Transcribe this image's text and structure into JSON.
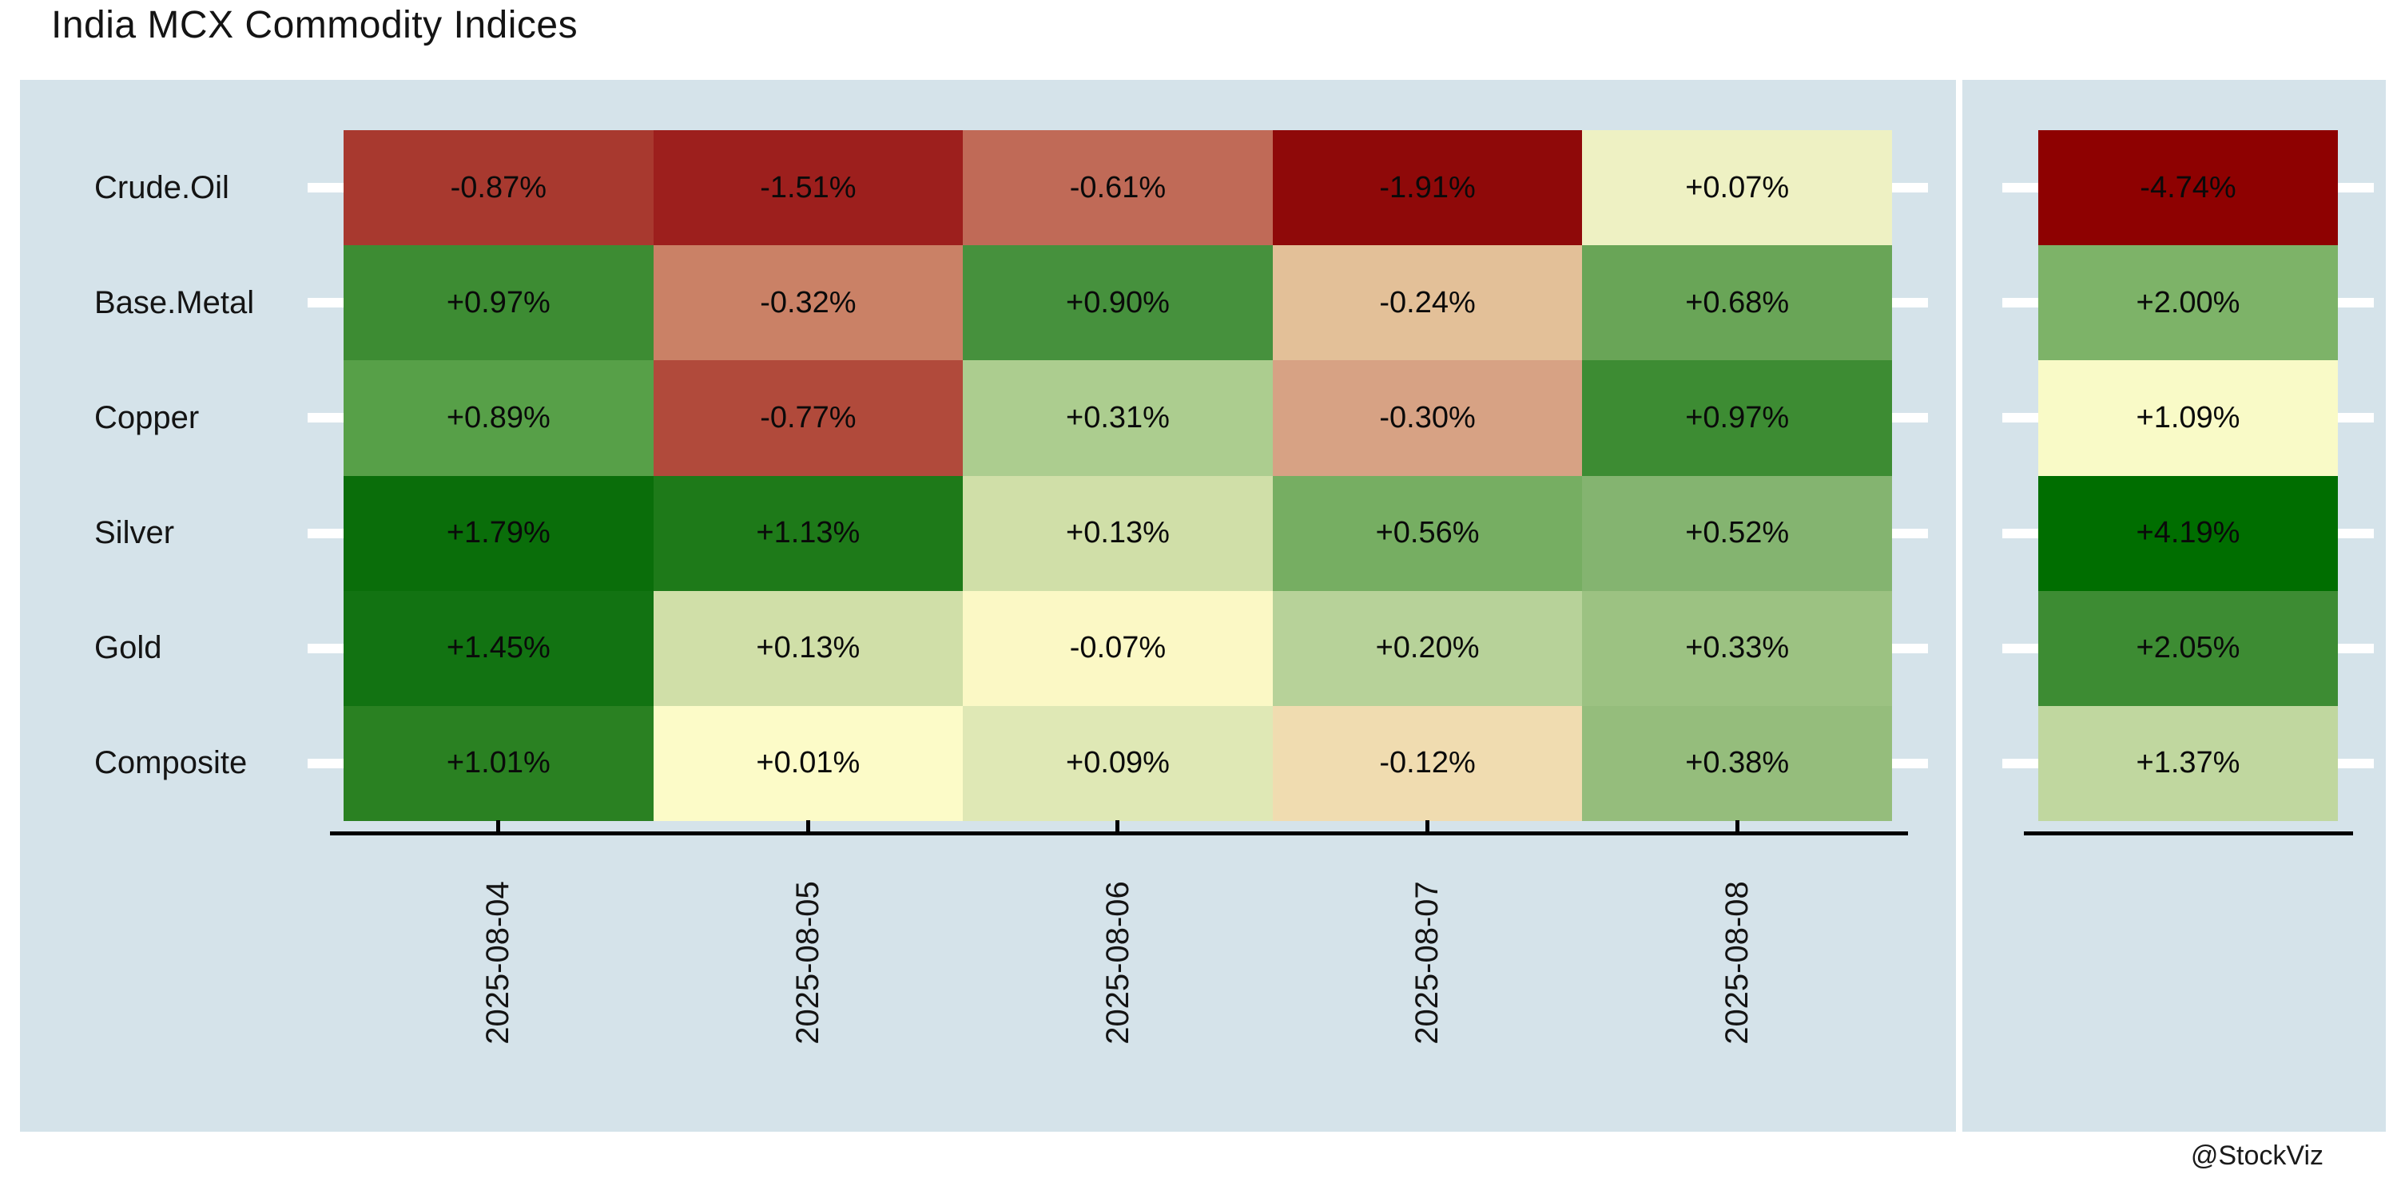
{
  "title": "India MCX Commodity Indices",
  "watermark": "@StockViz",
  "colors": {
    "panel_bg": "#d5e3ea",
    "axis": "#000000",
    "tick": "#ffffff",
    "text": "#141414"
  },
  "chart_data": {
    "type": "heatmap",
    "title": "India MCX Commodity Indices",
    "colormap": "RdYlGn",
    "rows": [
      "Crude.Oil",
      "Base.Metal",
      "Copper",
      "Silver",
      "Gold",
      "Composite"
    ],
    "columns": [
      "2025-08-04",
      "2025-08-05",
      "2025-08-06",
      "2025-08-07",
      "2025-08-08"
    ],
    "values": [
      [
        -0.87,
        -1.51,
        -0.61,
        -1.91,
        0.07
      ],
      [
        0.97,
        -0.32,
        0.9,
        -0.24,
        0.68
      ],
      [
        0.89,
        -0.77,
        0.31,
        -0.3,
        0.97
      ],
      [
        1.79,
        1.13,
        0.13,
        0.56,
        0.52
      ],
      [
        1.45,
        0.13,
        -0.07,
        0.2,
        0.33
      ],
      [
        1.01,
        0.01,
        0.09,
        -0.12,
        0.38
      ]
    ],
    "cell_labels": [
      [
        "-0.87%",
        "-1.51%",
        "-0.61%",
        "-1.91%",
        "+0.07%"
      ],
      [
        "+0.97%",
        "-0.32%",
        "+0.90%",
        "-0.24%",
        "+0.68%"
      ],
      [
        "+0.89%",
        "-0.77%",
        "+0.31%",
        "-0.30%",
        "+0.97%"
      ],
      [
        "+1.79%",
        "+1.13%",
        "+0.13%",
        "+0.56%",
        "+0.52%"
      ],
      [
        "+1.45%",
        "+0.13%",
        "-0.07%",
        "+0.20%",
        "+0.33%"
      ],
      [
        "+1.01%",
        "+0.01%",
        "+0.09%",
        "-0.12%",
        "+0.38%"
      ]
    ],
    "cell_colors": [
      [
        "#a8392f",
        "#9d1f1d",
        "#c06a57",
        "#8f0909",
        "#eef1c3"
      ],
      [
        "#3d8c33",
        "#ca8166",
        "#46913d",
        "#e3c098",
        "#69a557"
      ],
      [
        "#57a048",
        "#b14a3b",
        "#accd8f",
        "#d7a284",
        "#3d8c33"
      ],
      [
        "#0a6e0a",
        "#1e7a19",
        "#d0dfa8",
        "#76ae62",
        "#84b470"
      ],
      [
        "#127312",
        "#d0dfa8",
        "#fbf8c5",
        "#b7d299",
        "#9cc282"
      ],
      [
        "#2a8122",
        "#fcfbc8",
        "#dfe8b5",
        "#f0dcb0",
        "#95bd7c"
      ]
    ],
    "totals": {
      "values": [
        -4.74,
        2.0,
        1.09,
        4.19,
        2.05,
        1.37
      ],
      "labels": [
        "-4.74%",
        "+2.00%",
        "+1.09%",
        "+4.19%",
        "+2.05%",
        "+1.37%"
      ],
      "colors": [
        "#8e0101",
        "#7db368",
        "#f9fac7",
        "#006e00",
        "#3d8c33",
        "#c0d79f"
      ]
    }
  }
}
